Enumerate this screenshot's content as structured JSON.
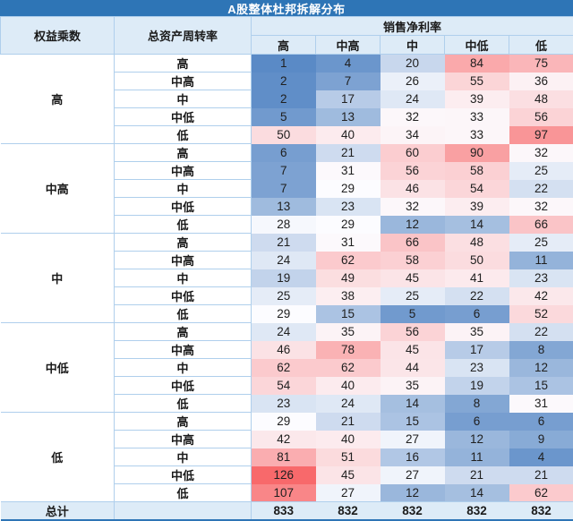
{
  "title": "A股整体杜邦拆解分布",
  "header": {
    "col1": "权益乘数",
    "col2": "总资产周转率",
    "col_group": "销售净利率",
    "sub_cols": [
      "高",
      "中高",
      "中",
      "中低",
      "低"
    ]
  },
  "chart_data": {
    "type": "heatmap",
    "row_group_axis": "权益乘数",
    "sub_row_axis": "总资产周转率",
    "column_axis": "销售净利率",
    "row_groups": [
      "高",
      "中高",
      "中",
      "中低",
      "低"
    ],
    "sub_rows": [
      "高",
      "中高",
      "中",
      "中低",
      "低"
    ],
    "columns": [
      "高",
      "中高",
      "中",
      "中低",
      "低"
    ],
    "values": [
      [
        1,
        4,
        20,
        84,
        75
      ],
      [
        2,
        7,
        26,
        55,
        36
      ],
      [
        2,
        17,
        24,
        39,
        48
      ],
      [
        5,
        13,
        32,
        33,
        56
      ],
      [
        50,
        40,
        34,
        33,
        97
      ],
      [
        6,
        21,
        60,
        90,
        32
      ],
      [
        7,
        31,
        56,
        58,
        25
      ],
      [
        7,
        29,
        46,
        54,
        22
      ],
      [
        13,
        23,
        32,
        39,
        32
      ],
      [
        28,
        29,
        12,
        14,
        66
      ],
      [
        21,
        31,
        66,
        48,
        25
      ],
      [
        24,
        62,
        58,
        50,
        11
      ],
      [
        19,
        49,
        45,
        41,
        23
      ],
      [
        25,
        38,
        25,
        22,
        42
      ],
      [
        29,
        15,
        5,
        6,
        52
      ],
      [
        24,
        35,
        56,
        35,
        22
      ],
      [
        46,
        78,
        45,
        17,
        8
      ],
      [
        62,
        62,
        44,
        23,
        12
      ],
      [
        54,
        40,
        35,
        19,
        15
      ],
      [
        23,
        24,
        14,
        8,
        31
      ],
      [
        29,
        21,
        15,
        6,
        6
      ],
      [
        42,
        40,
        27,
        12,
        9
      ],
      [
        81,
        51,
        16,
        11,
        4
      ],
      [
        126,
        45,
        27,
        21,
        21
      ],
      [
        107,
        27,
        12,
        14,
        62
      ]
    ],
    "totals_label": "总计",
    "totals": [
      833,
      832,
      832,
      832,
      832
    ],
    "color_scale": {
      "min": 1,
      "mid": 29,
      "max": 126,
      "min_color": "#5A8AC6",
      "mid_color": "#FCFCFF",
      "max_color": "#F8696B"
    }
  },
  "colors": {
    "title_bg": "#2E75B6",
    "header_bg": "#DDEBF7",
    "total_bg": "#DDEBF7",
    "grid": "#AFCFEC",
    "bottom_border": "#2E75B6"
  }
}
